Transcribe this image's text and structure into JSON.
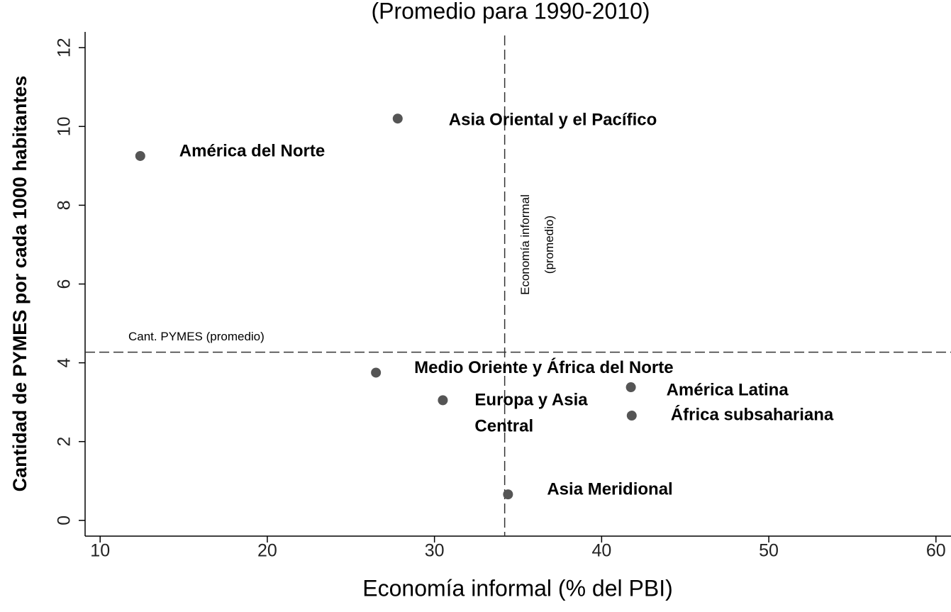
{
  "chart_data": {
    "type": "scatter",
    "title": "(Promedio para 1990-2010)",
    "xlabel": "Economía informal (% del PBI)",
    "ylabel": "Cantidad de PYMES por cada 1000 habitantes",
    "labels": [
      [
        "América del Norte"
      ],
      [
        "Asia Oriental y el Pacífico"
      ],
      [
        "Medio Oriente y África del Norte"
      ],
      [
        "Europa y Asia",
        "Central"
      ],
      [
        "América Latina"
      ],
      [
        "África subsahariana"
      ],
      [
        "Asia Meridional"
      ]
    ],
    "x": [
      12.4,
      27.8,
      26.5,
      30.5,
      41.75,
      41.8,
      34.4
    ],
    "y": [
      9.25,
      10.2,
      3.75,
      3.05,
      3.38,
      2.66,
      0.66
    ],
    "color": "#555555",
    "xlim": [
      9.1,
      60.9
    ],
    "ylim": [
      -0.4,
      12.4
    ],
    "xticks": [
      10,
      20,
      30,
      40,
      50,
      60
    ],
    "yticks": [
      0,
      2,
      4,
      6,
      8,
      10,
      12
    ],
    "reference_lines": [
      {
        "axis": "x",
        "value": 34.2,
        "label": [
          "Economía informal",
          "(promedio)"
        ]
      },
      {
        "axis": "y",
        "value": 4.27,
        "label": [
          "Cant. PYMES (promedio)"
        ]
      }
    ]
  }
}
